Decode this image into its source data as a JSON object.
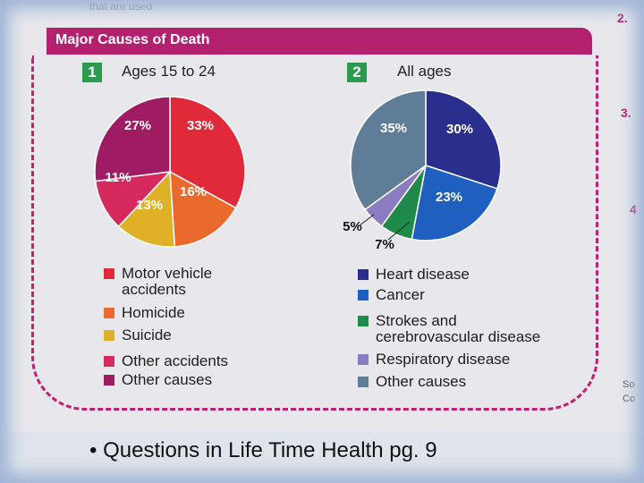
{
  "page": {
    "banner_title": "Major Causes of Death",
    "caption": "Questions in Life Time Health pg. 9",
    "edge_texts": [
      "2.",
      "3.",
      "4",
      "So",
      "Co"
    ],
    "top_text": "that are used"
  },
  "chart_data": [
    {
      "type": "pie",
      "number": "1",
      "title": "Ages 15 to 24",
      "slices": [
        {
          "label": "Motor vehicle accidents",
          "value": 33,
          "color": "#e02a3a",
          "label_text": "33%"
        },
        {
          "label": "Homicide",
          "value": 16,
          "color": "#ea6a2e",
          "label_text": "16%"
        },
        {
          "label": "Suicide",
          "value": 13,
          "color": "#e0b127",
          "label_text": "13%"
        },
        {
          "label": "Other accidents",
          "value": 11,
          "color": "#d62a5e",
          "label_text": "11%"
        },
        {
          "label": "Other causes",
          "value": 27,
          "color": "#a01c62",
          "label_text": "27%"
        }
      ],
      "legend_placement": "bottom"
    },
    {
      "type": "pie",
      "number": "2",
      "title": "All ages",
      "slices": [
        {
          "label": "Heart disease",
          "value": 30,
          "color": "#2a2f8e",
          "label_text": "30%"
        },
        {
          "label": "Cancer",
          "value": 23,
          "color": "#1f5fbf",
          "label_text": "23%"
        },
        {
          "label": "Strokes and cerebrovascular disease",
          "value": 7,
          "color": "#1f8a4a",
          "label_text": "7%"
        },
        {
          "label": "Respiratory disease",
          "value": 5,
          "color": "#8b7cc2",
          "label_text": "5%"
        },
        {
          "label": "Other causes",
          "value": 35,
          "color": "#5f7d96",
          "label_text": "35%"
        }
      ],
      "legend_placement": "bottom"
    }
  ]
}
